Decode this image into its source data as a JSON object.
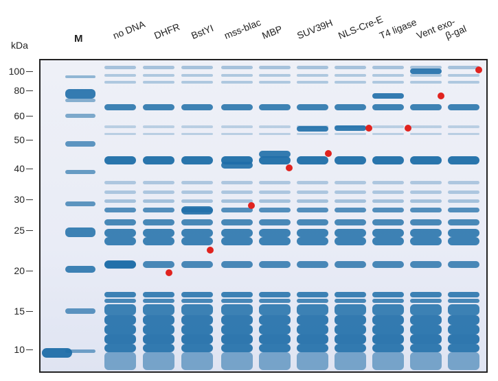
{
  "axis": {
    "unit_label": "kDa",
    "ticks": [
      "100",
      "80",
      "60",
      "50",
      "40",
      "30",
      "25",
      "20",
      "15",
      "10"
    ]
  },
  "marker_lane_label": "M",
  "lanes": [
    "no DNA",
    "DHFR",
    "BstYI",
    "mss-blac",
    "MBP",
    "SUV39H",
    "NLS-Cre-E",
    "T4 ligase",
    "Vent exo-",
    "β-gal"
  ],
  "colors": {
    "band": "#1f6ea8",
    "highlight_dot": "#e0231f",
    "gel_background": "#e9ecf6"
  }
}
